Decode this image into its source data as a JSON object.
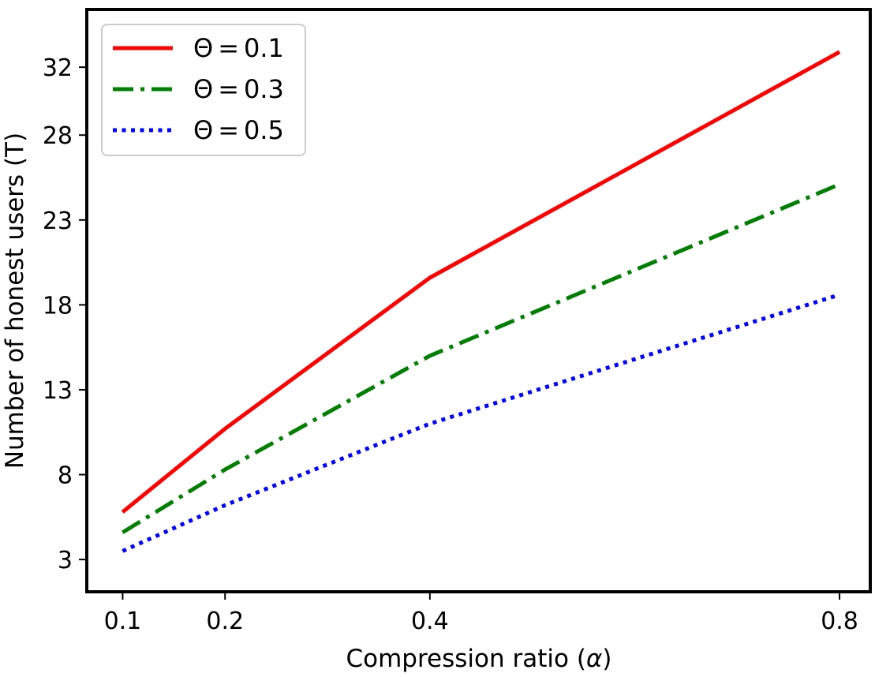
{
  "chart_data": {
    "type": "line",
    "title": "",
    "xlabel_prefix": "Compression ratio (",
    "xlabel_symbol": "α",
    "xlabel_suffix": ")",
    "ylabel": "Number of honest users (T)",
    "xlim": [
      0.065,
      0.83
    ],
    "ylim": [
      1.1,
      35.4
    ],
    "x_ticks": [
      0.1,
      0.2,
      0.4,
      0.8
    ],
    "x_tick_labels": [
      "0.1",
      "0.2",
      "0.4",
      "0.8"
    ],
    "y_ticks": [
      3,
      8,
      13,
      18,
      23,
      28,
      32
    ],
    "y_tick_labels": [
      "3",
      "8",
      "13",
      "18",
      "23",
      "28",
      "32"
    ],
    "grid": false,
    "legend_position": "top-left",
    "x": [
      0.1,
      0.2,
      0.4,
      0.8
    ],
    "series": [
      {
        "name": "Θ = 0.1",
        "label_symbol": "Θ",
        "label_eq": "=",
        "label_value": "0.1",
        "color": "#ff0000",
        "style": "solid",
        "values": [
          5.8,
          10.7,
          19.6,
          32.9
        ]
      },
      {
        "name": "Θ = 0.3",
        "label_symbol": "Θ",
        "label_eq": "=",
        "label_value": "0.3",
        "color": "#008000",
        "style": "dashdot",
        "values": [
          4.6,
          8.3,
          15.0,
          25.1
        ]
      },
      {
        "name": "Θ = 0.5",
        "label_symbol": "Θ",
        "label_eq": "=",
        "label_value": "0.5",
        "color": "#0000ff",
        "style": "dotted",
        "values": [
          3.5,
          6.2,
          11.0,
          18.6
        ]
      }
    ]
  }
}
